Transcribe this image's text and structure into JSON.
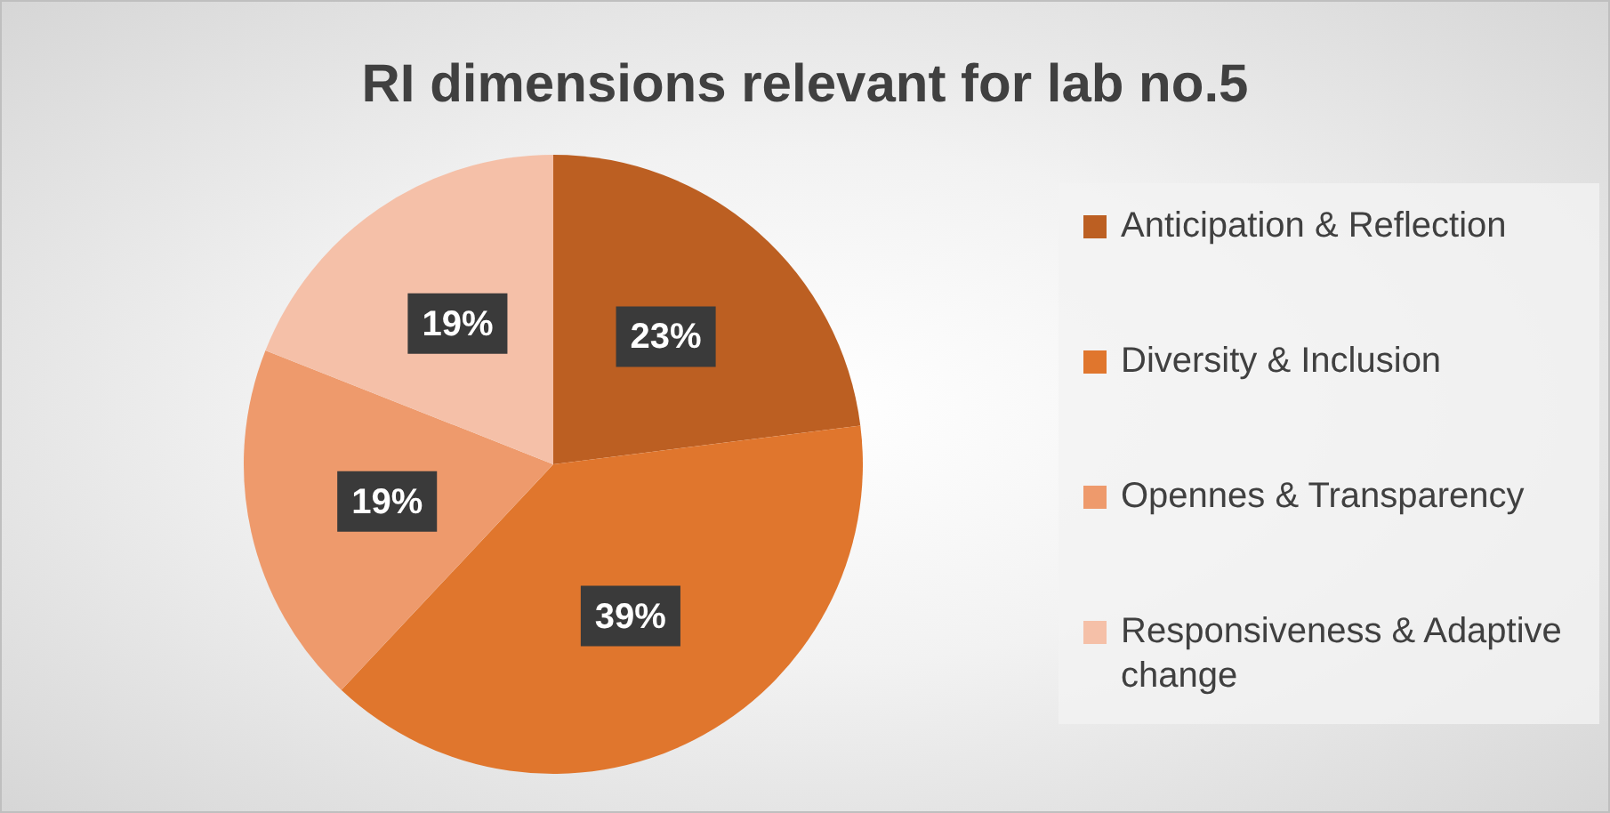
{
  "chart_data": {
    "type": "pie",
    "title": "RI dimensions relevant for lab no.5",
    "categories": [
      "Anticipation & Reflection",
      "Diversity & Inclusion",
      "Opennes & Transparency",
      "Responsiveness & Adaptive change"
    ],
    "values": [
      23,
      39,
      19,
      19
    ],
    "colors": [
      "#bc5f22",
      "#e0762d",
      "#ee9a6c",
      "#f5c0a8"
    ],
    "value_labels": [
      "23%",
      "39%",
      "19%",
      "19%"
    ],
    "legend": "right"
  }
}
